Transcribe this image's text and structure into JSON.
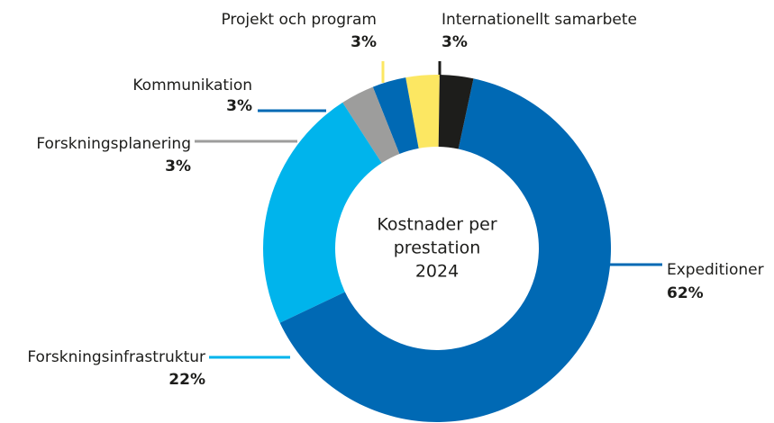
{
  "chart_data": {
    "type": "donut",
    "center_label": [
      "Kostnader per",
      "prestation",
      "2024"
    ],
    "categories": [
      "Internationellt samarbete",
      "Expeditioner",
      "Forskningsinfrastruktur",
      "Forskningsplanering",
      "Kommunikation",
      "Projekt och program"
    ],
    "values": [
      3,
      62,
      22,
      3,
      3,
      3
    ],
    "value_labels": [
      "3%",
      "62%",
      "22%",
      "3%",
      "3%",
      "3%"
    ],
    "colors": [
      "#1d1d1b",
      "#0069b4",
      "#00b4ec",
      "#9d9d9c",
      "#0069b4",
      "#fce762"
    ]
  }
}
